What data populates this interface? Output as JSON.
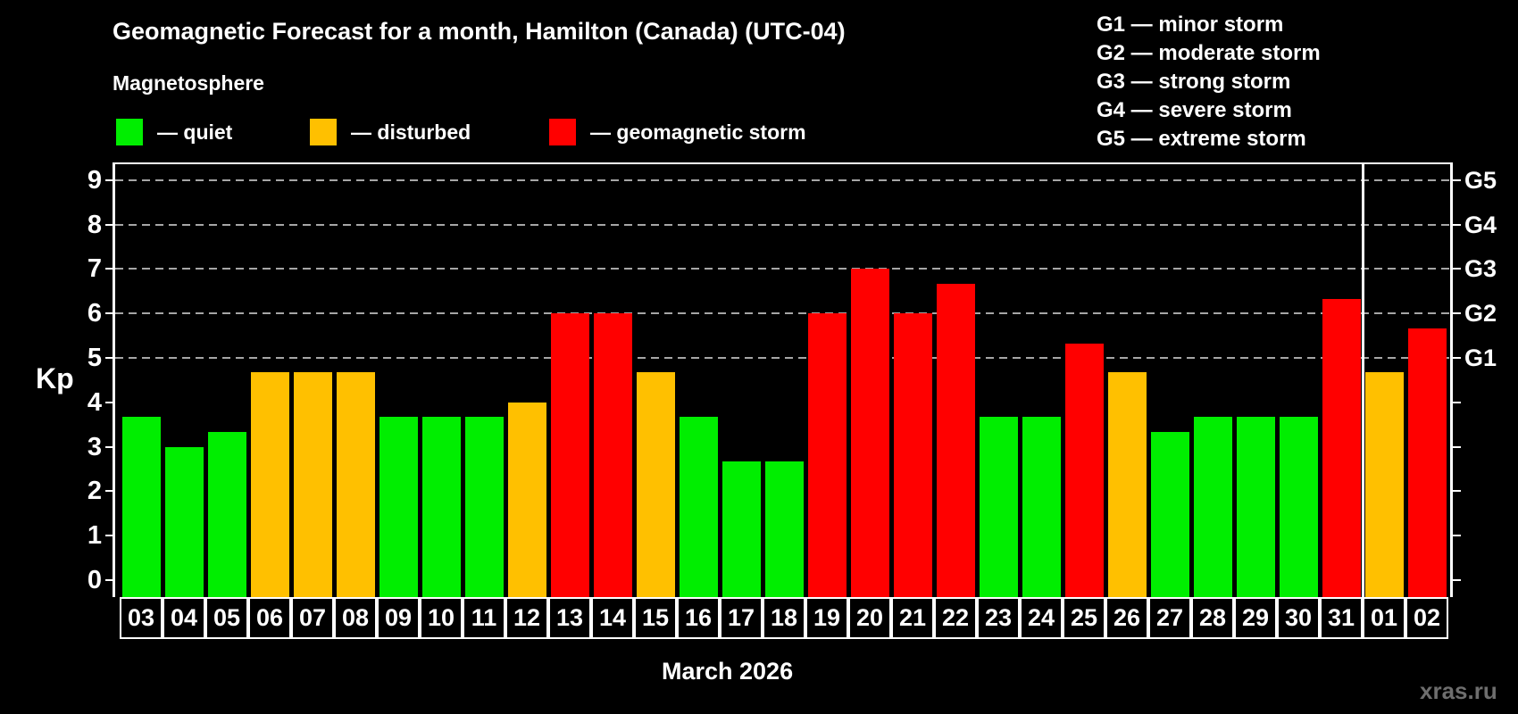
{
  "title": "Geomagnetic Forecast for a month, Hamilton (Canada) (UTC-04)",
  "subtitle": "Magnetosphere",
  "legend": {
    "items": [
      {
        "key": "quiet",
        "label": "— quiet",
        "color": "#00ee00"
      },
      {
        "key": "disturbed",
        "label": "— disturbed",
        "color": "#ffc000"
      },
      {
        "key": "storm",
        "label": "— geomagnetic storm",
        "color": "#ff0000"
      }
    ]
  },
  "g_legend": [
    "G1 — minor storm",
    "G2 — moderate storm",
    "G3 — strong storm",
    "G4 — severe storm",
    "G5 — extreme storm"
  ],
  "watermark": "xras.ru",
  "chart_data": {
    "type": "bar",
    "title": "Geomagnetic Forecast for a month, Hamilton (Canada) (UTC-04)",
    "xlabel": "March 2026",
    "ylabel": "Kp",
    "ylim": [
      -0.38,
      9.35
    ],
    "grid": "dashed horizontal at storm levels only",
    "gridline_color": "#a6a6a6",
    "background": "#000000",
    "yticks": [
      0,
      1,
      2,
      3,
      4,
      5,
      6,
      7,
      8,
      9
    ],
    "gridlines_at": [
      5,
      6,
      7,
      8,
      9
    ],
    "right_axis": [
      {
        "kp": 5,
        "label": "G1"
      },
      {
        "kp": 6,
        "label": "G2"
      },
      {
        "kp": 7,
        "label": "G3"
      },
      {
        "kp": 8,
        "label": "G4"
      },
      {
        "kp": 9,
        "label": "G5"
      }
    ],
    "categories": [
      "03",
      "04",
      "05",
      "06",
      "07",
      "08",
      "09",
      "10",
      "11",
      "12",
      "13",
      "14",
      "15",
      "16",
      "17",
      "18",
      "19",
      "20",
      "21",
      "22",
      "23",
      "24",
      "25",
      "26",
      "27",
      "28",
      "29",
      "30",
      "31",
      "01",
      "02"
    ],
    "values": [
      3.67,
      3.0,
      3.33,
      4.67,
      4.67,
      4.67,
      3.67,
      3.67,
      3.67,
      4.0,
      6.0,
      6.0,
      4.67,
      3.67,
      2.67,
      2.67,
      6.0,
      7.0,
      6.0,
      6.67,
      3.67,
      3.67,
      5.33,
      4.67,
      3.33,
      3.67,
      3.67,
      3.67,
      6.33,
      4.67,
      5.67
    ],
    "states": [
      "quiet",
      "quiet",
      "quiet",
      "disturbed",
      "disturbed",
      "disturbed",
      "quiet",
      "quiet",
      "quiet",
      "disturbed",
      "storm",
      "storm",
      "disturbed",
      "quiet",
      "quiet",
      "quiet",
      "storm",
      "storm",
      "storm",
      "storm",
      "quiet",
      "quiet",
      "storm",
      "disturbed",
      "quiet",
      "quiet",
      "quiet",
      "quiet",
      "storm",
      "disturbed",
      "storm"
    ],
    "palette": {
      "quiet": "#00ee00",
      "disturbed": "#ffc000",
      "storm": "#ff0000"
    },
    "month_separator_after_index": 28
  }
}
